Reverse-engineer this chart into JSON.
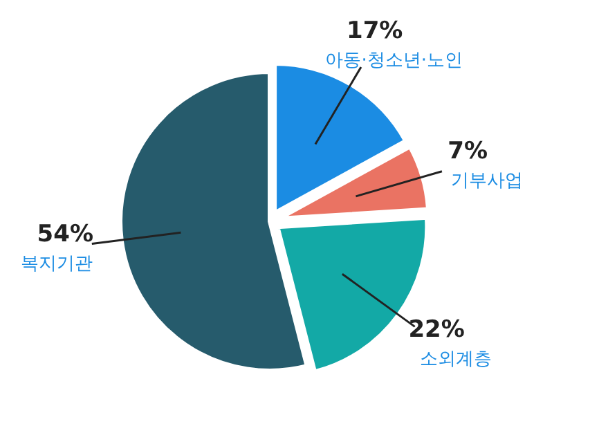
{
  "chart_data": {
    "type": "pie",
    "categories": [
      "아동·청소년·노인",
      "기부사업",
      "소외계층",
      "복지기관"
    ],
    "values": [
      17,
      7,
      22,
      54
    ],
    "value_labels": [
      "17%",
      "7%",
      "22%",
      "54%"
    ],
    "colors": [
      "#1b8ce3",
      "#ea7363",
      "#13a9a6",
      "#265b6c"
    ],
    "legend": false
  }
}
